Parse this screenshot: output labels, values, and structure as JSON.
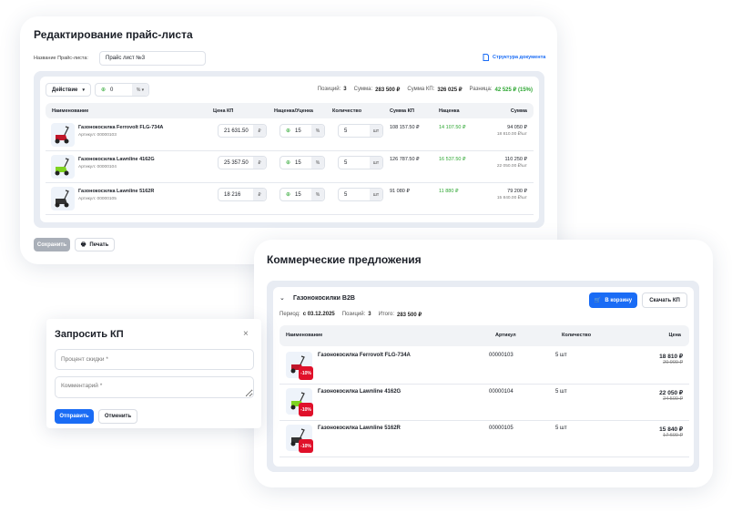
{
  "pricelist": {
    "title": "Редактирование прайс-листа",
    "name_label": "Название Прайс-листа:",
    "name_value": "Прайс лист №3",
    "doc_structure": "Структура документа",
    "action_label": "Действие",
    "discount_value": "0",
    "discount_unit": "% ▾",
    "summary": {
      "positions_label": "Позиций:",
      "positions": "3",
      "sum_label": "Сумма:",
      "sum": "283 500 ₽",
      "kp_label": "Сумма КП:",
      "kp": "326 025 ₽",
      "diff_label": "Разница:",
      "diff": "42 525 ₽ (15%)"
    },
    "columns": [
      "Наименование",
      "Цена КП",
      "Наценка/Уценка",
      "Количество",
      "Сумма КП",
      "Наценка",
      "Сумма"
    ],
    "rows": [
      {
        "name": "Газонокосилка Ferrovolt FLG-734A",
        "sku": "Артикул: 00000103",
        "price": "21 631.50",
        "markup": "15",
        "qty": "5",
        "sum_kp": "108 157.50 ₽",
        "markup_sum": "14 107.50 ₽",
        "sum": "94 050 ₽",
        "unit_price": "18 810.00 ₽/шт",
        "color": "#c0162a"
      },
      {
        "name": "Газонокосилка Lawnline 4162G",
        "sku": "Артикул: 00000104",
        "price": "25 357.50",
        "markup": "15",
        "qty": "5",
        "sum_kp": "126 787.50 ₽",
        "markup_sum": "16 537.50 ₽",
        "sum": "110 250 ₽",
        "unit_price": "22 050.00 ₽/шт",
        "color": "#7ed321"
      },
      {
        "name": "Газонокосилка Lawnline 5162R",
        "sku": "Артикул: 00000105",
        "price": "18 216",
        "markup": "15",
        "qty": "5",
        "sum_kp": "91 080 ₽",
        "markup_sum": "11 880 ₽",
        "sum": "79 200 ₽",
        "unit_price": "15 840.00 ₽/шт",
        "color": "#333333"
      }
    ],
    "currency": "₽",
    "percent": "%",
    "unit": "шт",
    "save": "Сохранить",
    "print": "Печать"
  },
  "offers": {
    "title": "Коммерческие предложения",
    "group": "Газонокосилки B2B",
    "cart": "В корзину",
    "download": "Скачать КП",
    "period_label": "Период:",
    "period": "с 03.12.2025",
    "positions_label": "Позиций:",
    "positions": "3",
    "total_label": "Итого:",
    "total": "283 500 ₽",
    "columns": [
      "Наименование",
      "Артикул",
      "Количество",
      "Цена"
    ],
    "rows": [
      {
        "name": "Газонокосилка Ferrovolt FLG-734A",
        "sku": "00000103",
        "qty": "5 шт",
        "price": "18 810 ₽",
        "old": "20 900 ₽",
        "discount": "-10%",
        "color": "#c0162a"
      },
      {
        "name": "Газонокосилка Lawnline 4162G",
        "sku": "00000104",
        "qty": "5 шт",
        "price": "22 050 ₽",
        "old": "24 500 ₽",
        "discount": "-10%",
        "color": "#7ed321"
      },
      {
        "name": "Газонокосилка Lawnline 5162R",
        "sku": "00000105",
        "qty": "5 шт",
        "price": "15 840 ₽",
        "old": "17 600 ₽",
        "discount": "-10%",
        "color": "#333333"
      }
    ]
  },
  "modal": {
    "title": "Запросить КП",
    "discount_placeholder": "Процент скидки *",
    "comment_placeholder": "Комментарий *",
    "submit": "Отправить",
    "cancel": "Отменить"
  },
  "colors": {
    "accent": "#1a6cf5",
    "positive": "#2aa52f",
    "discount": "#e0102a"
  }
}
